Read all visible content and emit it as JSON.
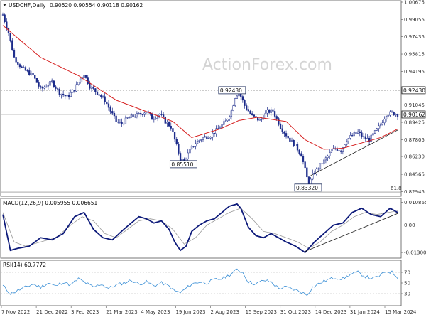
{
  "header": {
    "symbol": "USDCHF,Daily",
    "ohlc": "0.90520 0.90554 0.90118 0.90162",
    "watermark": "ActionForex.com"
  },
  "colors": {
    "candle": "#1b2a8a",
    "ma": "#d62020",
    "macd": "#0d1a7a",
    "signal": "#999999",
    "rsi": "#3a8fd6",
    "trend": "#111111",
    "level": "#555555"
  },
  "chart_data": [
    {
      "type": "candlestick",
      "panel": "price",
      "y_ticks": [
        "1.00675",
        "0.99055",
        "0.97435",
        "0.95815",
        "0.94195",
        "0.92430",
        "0.91045",
        "0.89425",
        "0.87805",
        "0.86230",
        "0.84565",
        "0.82945"
      ],
      "ylim": [
        0.8264,
        1.00675
      ],
      "x_ticks": [
        "7 Nov 2022",
        "21 Dec 2022",
        "3 Feb 2023",
        "21 Mar 2023",
        "4 May 2023",
        "19 Jun 2023",
        "2 Aug 2023",
        "15 Sep 2023",
        "31 Oct 2023",
        "14 Dec 2023",
        "31 Jan 2024",
        "15 Mar 2024"
      ],
      "close_path": [
        [
          0,
          0.995
        ],
        [
          3,
          0.978
        ],
        [
          6,
          0.955
        ],
        [
          10,
          0.945
        ],
        [
          16,
          0.938
        ],
        [
          20,
          0.925
        ],
        [
          26,
          0.932
        ],
        [
          30,
          0.922
        ],
        [
          34,
          0.918
        ],
        [
          38,
          0.925
        ],
        [
          41,
          0.935
        ],
        [
          43,
          0.94
        ],
        [
          46,
          0.928
        ],
        [
          50,
          0.922
        ],
        [
          54,
          0.915
        ],
        [
          57,
          0.905
        ],
        [
          60,
          0.895
        ],
        [
          63,
          0.893
        ],
        [
          66,
          0.898
        ],
        [
          69,
          0.9
        ],
        [
          73,
          0.902
        ],
        [
          76,
          0.905
        ],
        [
          79,
          0.898
        ],
        [
          83,
          0.902
        ],
        [
          86,
          0.895
        ],
        [
          89,
          0.89
        ],
        [
          92,
          0.872
        ],
        [
          94,
          0.86
        ],
        [
          96,
          0.858
        ],
        [
          99,
          0.868
        ],
        [
          102,
          0.875
        ],
        [
          106,
          0.88
        ],
        [
          110,
          0.882
        ],
        [
          114,
          0.888
        ],
        [
          118,
          0.895
        ],
        [
          121,
          0.905
        ],
        [
          123,
          0.918
        ],
        [
          125,
          0.923
        ],
        [
          128,
          0.91
        ],
        [
          132,
          0.9
        ],
        [
          136,
          0.896
        ],
        [
          140,
          0.904
        ],
        [
          143,
          0.905
        ],
        [
          147,
          0.89
        ],
        [
          151,
          0.88
        ],
        [
          155,
          0.872
        ],
        [
          158,
          0.864
        ],
        [
          160,
          0.85
        ],
        [
          162,
          0.835
        ],
        [
          164,
          0.845
        ],
        [
          167,
          0.852
        ],
        [
          170,
          0.858
        ],
        [
          173,
          0.865
        ],
        [
          176,
          0.87
        ],
        [
          179,
          0.868
        ],
        [
          182,
          0.878
        ],
        [
          185,
          0.882
        ],
        [
          188,
          0.885
        ],
        [
          191,
          0.88
        ],
        [
          194,
          0.878
        ],
        [
          197,
          0.885
        ],
        [
          200,
          0.892
        ],
        [
          203,
          0.902
        ],
        [
          206,
          0.903
        ],
        [
          209,
          0.9016
        ]
      ],
      "moving_average": [
        [
          0,
          0.985
        ],
        [
          20,
          0.955
        ],
        [
          40,
          0.938
        ],
        [
          60,
          0.915
        ],
        [
          75,
          0.905
        ],
        [
          90,
          0.895
        ],
        [
          100,
          0.88
        ],
        [
          115,
          0.888
        ],
        [
          125,
          0.896
        ],
        [
          135,
          0.899
        ],
        [
          150,
          0.895
        ],
        [
          160,
          0.878
        ],
        [
          170,
          0.869
        ],
        [
          180,
          0.87
        ],
        [
          190,
          0.875
        ],
        [
          200,
          0.88
        ],
        [
          209,
          0.888
        ]
      ],
      "levels": [
        {
          "label": "0.92430",
          "value": 0.9243,
          "style": "dotted"
        },
        {
          "label": "0.90162",
          "value": 0.90162,
          "style": "solid-gray",
          "highlight": true
        }
      ],
      "swing_labels": [
        {
          "label": "0.92430",
          "value": 0.9243,
          "x_index": 124
        },
        {
          "label": "0.85510",
          "value": 0.8551,
          "x_index": 96
        },
        {
          "label": "0.83320",
          "value": 0.8332,
          "x_index": 162
        }
      ],
      "fib_label": "61.8",
      "trendline": [
        [
          163,
          0.8445
        ],
        [
          209,
          0.887
        ]
      ]
    },
    {
      "type": "line",
      "panel": "macd",
      "title": "MACD(12,26,9) 0.005955 0.006651",
      "y_ticks": [
        "0.010865",
        "0.00",
        "-0.013006"
      ],
      "ylim": [
        -0.015,
        0.012
      ],
      "zero": 0.0,
      "macd": [
        [
          0,
          0.005
        ],
        [
          4,
          -0.012
        ],
        [
          8,
          -0.011
        ],
        [
          14,
          -0.01
        ],
        [
          20,
          -0.006
        ],
        [
          26,
          -0.007
        ],
        [
          32,
          -0.004
        ],
        [
          38,
          0.004
        ],
        [
          43,
          0.006
        ],
        [
          48,
          -0.002
        ],
        [
          53,
          -0.006
        ],
        [
          58,
          -0.007
        ],
        [
          64,
          -0.002
        ],
        [
          68,
          0.001
        ],
        [
          72,
          0.004
        ],
        [
          76,
          0.003
        ],
        [
          80,
          0.001
        ],
        [
          84,
          0.002
        ],
        [
          88,
          -0.002
        ],
        [
          91,
          -0.008
        ],
        [
          94,
          -0.012
        ],
        [
          97,
          -0.01
        ],
        [
          100,
          -0.003
        ],
        [
          104,
          0.0
        ],
        [
          108,
          0.002
        ],
        [
          112,
          0.003
        ],
        [
          116,
          0.006
        ],
        [
          120,
          0.009
        ],
        [
          124,
          0.01
        ],
        [
          126,
          0.008
        ],
        [
          130,
          -0.001
        ],
        [
          134,
          -0.005
        ],
        [
          138,
          -0.006
        ],
        [
          142,
          -0.004
        ],
        [
          146,
          -0.006
        ],
        [
          150,
          -0.008
        ],
        [
          155,
          -0.01
        ],
        [
          160,
          -0.013
        ],
        [
          165,
          -0.008
        ],
        [
          170,
          -0.004
        ],
        [
          175,
          0.0
        ],
        [
          180,
          0.001
        ],
        [
          185,
          0.006
        ],
        [
          190,
          0.008
        ],
        [
          195,
          0.005
        ],
        [
          200,
          0.004
        ],
        [
          205,
          0.008
        ],
        [
          209,
          0.006
        ]
      ],
      "signal": [
        [
          0,
          0.006
        ],
        [
          6,
          -0.008
        ],
        [
          12,
          -0.01
        ],
        [
          20,
          -0.008
        ],
        [
          28,
          -0.006
        ],
        [
          36,
          0.0
        ],
        [
          42,
          0.004
        ],
        [
          48,
          0.002
        ],
        [
          54,
          -0.004
        ],
        [
          60,
          -0.006
        ],
        [
          66,
          -0.002
        ],
        [
          72,
          0.002
        ],
        [
          78,
          0.003
        ],
        [
          84,
          0.002
        ],
        [
          90,
          -0.002
        ],
        [
          96,
          -0.009
        ],
        [
          102,
          -0.006
        ],
        [
          108,
          0.0
        ],
        [
          114,
          0.003
        ],
        [
          120,
          0.006
        ],
        [
          126,
          0.008
        ],
        [
          132,
          0.003
        ],
        [
          138,
          -0.003
        ],
        [
          144,
          -0.004
        ],
        [
          150,
          -0.006
        ],
        [
          156,
          -0.008
        ],
        [
          162,
          -0.011
        ],
        [
          168,
          -0.008
        ],
        [
          174,
          -0.003
        ],
        [
          180,
          0.0
        ],
        [
          186,
          0.004
        ],
        [
          192,
          0.006
        ],
        [
          198,
          0.005
        ],
        [
          204,
          0.006
        ],
        [
          209,
          0.0067
        ]
      ],
      "trendline": [
        [
          160,
          -0.0125
        ],
        [
          209,
          0.0055
        ]
      ]
    },
    {
      "type": "line",
      "panel": "rsi",
      "title": "RSI(14) 60.7772",
      "y_ticks": [
        "70",
        "50",
        "30"
      ],
      "ylim": [
        10,
        90
      ],
      "rsi": [
        [
          0,
          45
        ],
        [
          4,
          30
        ],
        [
          8,
          36
        ],
        [
          12,
          42
        ],
        [
          16,
          48
        ],
        [
          20,
          42
        ],
        [
          24,
          50
        ],
        [
          28,
          44
        ],
        [
          32,
          52
        ],
        [
          36,
          46
        ],
        [
          40,
          58
        ],
        [
          44,
          50
        ],
        [
          48,
          42
        ],
        [
          52,
          48
        ],
        [
          56,
          40
        ],
        [
          60,
          46
        ],
        [
          64,
          50
        ],
        [
          68,
          55
        ],
        [
          72,
          48
        ],
        [
          76,
          52
        ],
        [
          80,
          45
        ],
        [
          84,
          50
        ],
        [
          88,
          44
        ],
        [
          91,
          35
        ],
        [
          94,
          32
        ],
        [
          97,
          40
        ],
        [
          100,
          48
        ],
        [
          104,
          52
        ],
        [
          108,
          50
        ],
        [
          112,
          56
        ],
        [
          116,
          58
        ],
        [
          120,
          65
        ],
        [
          124,
          75
        ],
        [
          127,
          70
        ],
        [
          130,
          52
        ],
        [
          134,
          48
        ],
        [
          138,
          55
        ],
        [
          142,
          52
        ],
        [
          146,
          40
        ],
        [
          150,
          42
        ],
        [
          154,
          38
        ],
        [
          158,
          33
        ],
        [
          161,
          28
        ],
        [
          164,
          42
        ],
        [
          168,
          50
        ],
        [
          172,
          56
        ],
        [
          176,
          60
        ],
        [
          180,
          58
        ],
        [
          184,
          66
        ],
        [
          188,
          70
        ],
        [
          192,
          62
        ],
        [
          196,
          58
        ],
        [
          200,
          64
        ],
        [
          203,
          72
        ],
        [
          206,
          70
        ],
        [
          209,
          60.8
        ]
      ]
    }
  ]
}
